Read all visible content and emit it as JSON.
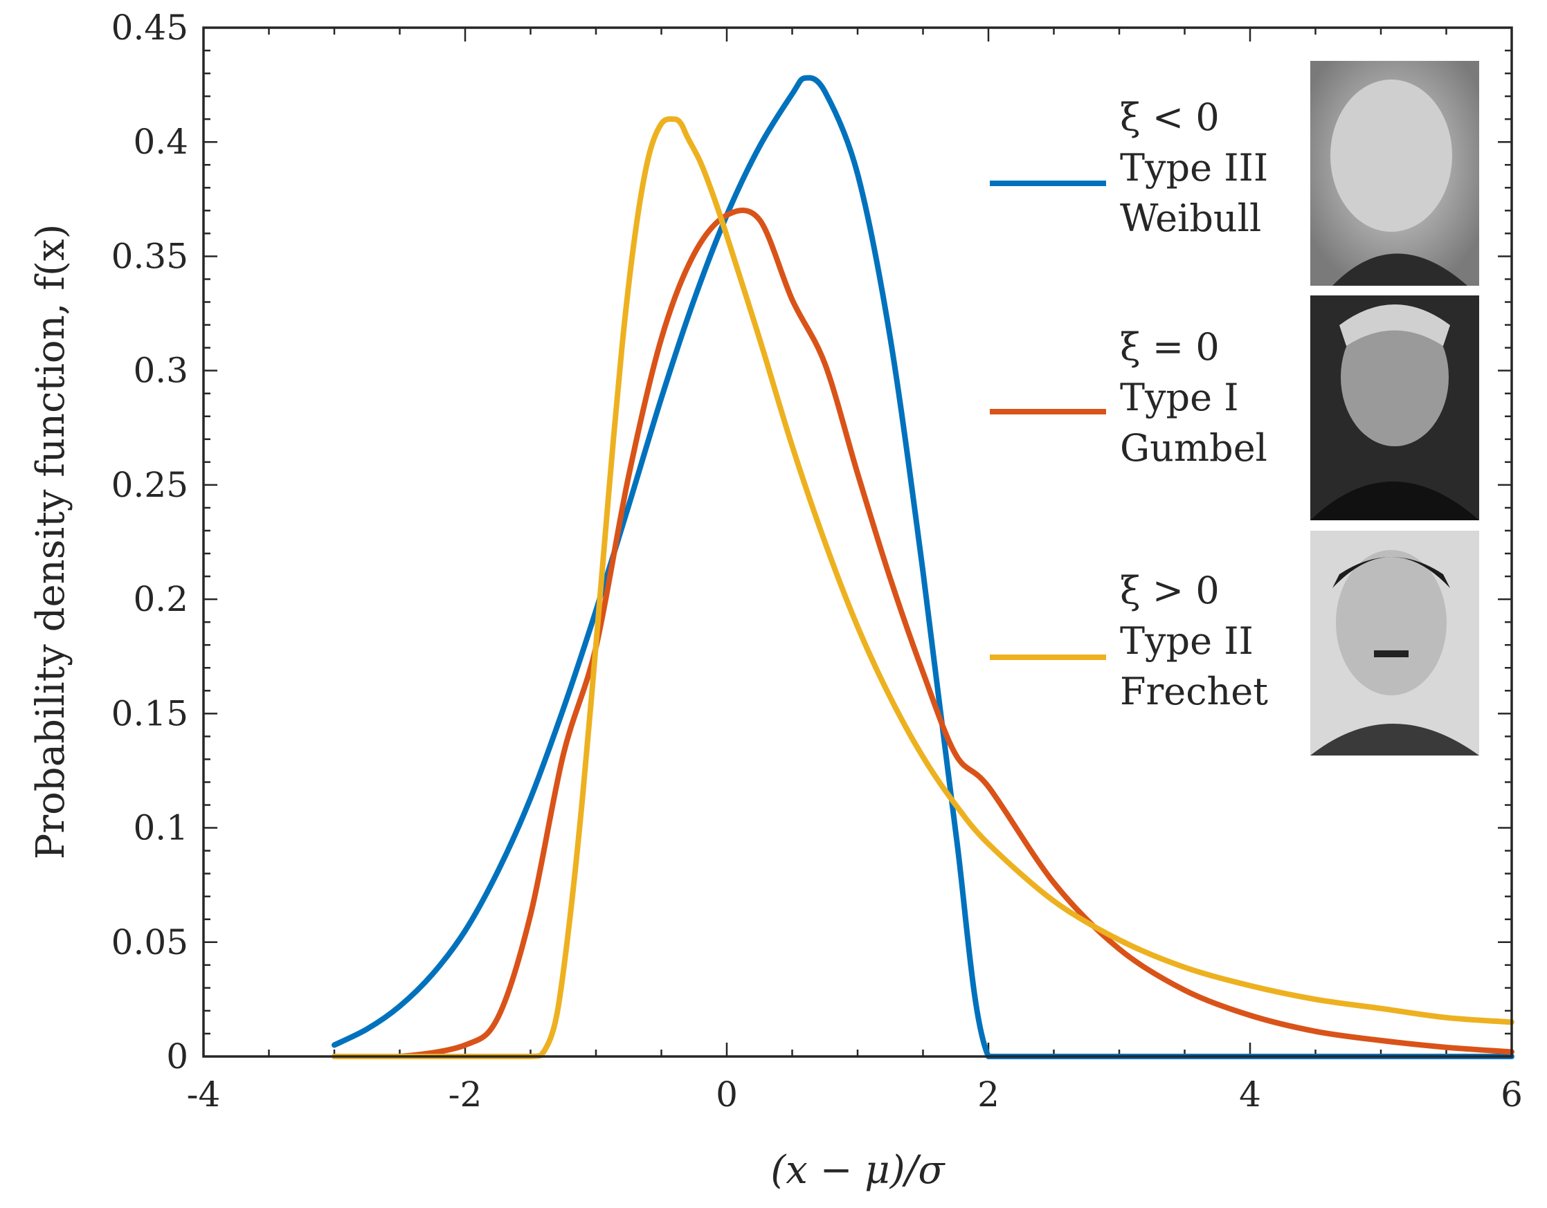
{
  "chart_data": {
    "type": "line",
    "title": "",
    "xlabel": "(x − μ)/σ",
    "ylabel": "Probability density function, f(x)",
    "xlim": [
      -4,
      6
    ],
    "ylim": [
      0,
      0.45
    ],
    "xticks": [
      -4,
      -2,
      0,
      2,
      4,
      6
    ],
    "xtick_labels": [
      "-4",
      "-2",
      "0",
      "2",
      "4",
      "6"
    ],
    "yticks": [
      0,
      0.05,
      0.1,
      0.15,
      0.2,
      0.25,
      0.3,
      0.35,
      0.4,
      0.45
    ],
    "ytick_labels": [
      "0",
      "0.05",
      "0.1",
      "0.15",
      "0.2",
      "0.25",
      "0.3",
      "0.35",
      "0.4",
      "0.45"
    ],
    "grid": false,
    "legend_position": "top-right",
    "series": [
      {
        "name": "Type III Weibull",
        "legend_lines": [
          "ξ < 0",
          "Type III",
          "Weibull"
        ],
        "color": "#0072BD",
        "x": [
          -3,
          -2.75,
          -2.5,
          -2.25,
          -2,
          -1.75,
          -1.5,
          -1.25,
          -1,
          -0.75,
          -0.5,
          -0.25,
          0,
          0.25,
          0.5,
          0.6,
          0.75,
          1,
          1.25,
          1.5,
          1.75,
          2,
          2.5,
          3,
          4,
          5,
          6
        ],
        "y": [
          0.005,
          0.012,
          0.022,
          0.036,
          0.055,
          0.081,
          0.113,
          0.152,
          0.195,
          0.241,
          0.288,
          0.331,
          0.368,
          0.398,
          0.421,
          0.428,
          0.422,
          0.386,
          0.314,
          0.212,
          0.098,
          0.0,
          0.0,
          0.0,
          0.0,
          0.0,
          0.0
        ]
      },
      {
        "name": "Type I Gumbel",
        "legend_lines": [
          "ξ = 0",
          "Type I",
          "Gumbel"
        ],
        "color": "#D95319",
        "x": [
          -3,
          -2.5,
          -2,
          -1.75,
          -1.5,
          -1.25,
          -1,
          -0.75,
          -0.5,
          -0.25,
          0,
          0.25,
          0.5,
          0.75,
          1,
          1.25,
          1.5,
          1.75,
          2,
          2.5,
          3,
          3.5,
          4,
          4.5,
          5,
          5.5,
          6
        ],
        "y": [
          0.0,
          0.0,
          0.005,
          0.017,
          0.062,
          0.132,
          0.179,
          0.254,
          0.314,
          0.351,
          0.368,
          0.366,
          0.331,
          0.303,
          0.255,
          0.209,
          0.168,
          0.132,
          0.118,
          0.076,
          0.047,
          0.029,
          0.018,
          0.011,
          0.007,
          0.004,
          0.002
        ]
      },
      {
        "name": "Type II Frechet",
        "legend_lines": [
          "ξ > 0",
          "Type II",
          "Frechet"
        ],
        "color": "#EDB120",
        "x": [
          -3,
          -2,
          -1.5,
          -1.4,
          -1.3,
          -1.2,
          -1.1,
          -1.0,
          -0.9,
          -0.8,
          -0.7,
          -0.6,
          -0.5,
          -0.4,
          -0.35,
          -0.3,
          -0.2,
          -0.1,
          0,
          0.25,
          0.5,
          0.75,
          1,
          1.25,
          1.5,
          1.75,
          2,
          2.5,
          3,
          3.5,
          4,
          4.5,
          5,
          5.5,
          6
        ],
        "y": [
          0.0,
          0.0,
          0.0,
          0.002,
          0.018,
          0.06,
          0.115,
          0.18,
          0.248,
          0.311,
          0.36,
          0.393,
          0.408,
          0.41,
          0.408,
          0.402,
          0.391,
          0.376,
          0.359,
          0.314,
          0.267,
          0.225,
          0.188,
          0.157,
          0.131,
          0.11,
          0.093,
          0.068,
          0.051,
          0.039,
          0.031,
          0.025,
          0.021,
          0.017,
          0.015
        ]
      }
    ]
  },
  "portraits": [
    {
      "icon": "portrait-photo",
      "subject": "Type III Weibull"
    },
    {
      "icon": "portrait-photo",
      "subject": "Type I Gumbel"
    },
    {
      "icon": "portrait-photo",
      "subject": "Type II Frechet"
    }
  ]
}
